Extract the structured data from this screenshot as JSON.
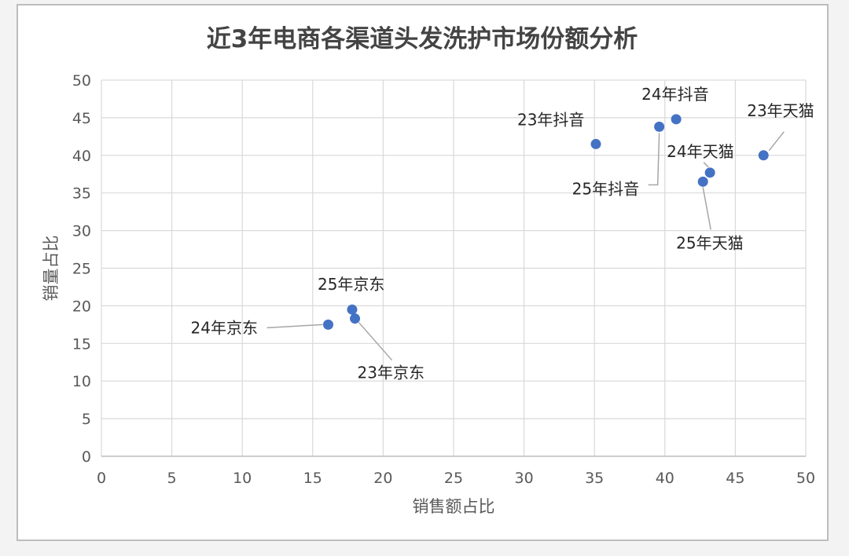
{
  "chart_data": {
    "type": "scatter",
    "title": "近3年电商各渠道头发洗护市场份额分析",
    "xlabel": "销售额占比",
    "ylabel": "销量占比",
    "xlim": [
      0,
      50
    ],
    "ylim": [
      0,
      50
    ],
    "xticks": [
      0,
      5,
      10,
      15,
      20,
      25,
      30,
      35,
      40,
      45,
      50
    ],
    "yticks": [
      0,
      5,
      10,
      15,
      20,
      25,
      30,
      35,
      40,
      45,
      50
    ],
    "grid": true,
    "marker_color": "#4472c4",
    "points": [
      {
        "label": "23年抖音",
        "x": 35.1,
        "y": 41.5
      },
      {
        "label": "24年抖音",
        "x": 40.8,
        "y": 44.8
      },
      {
        "label": "25年抖音",
        "x": 39.6,
        "y": 43.8
      },
      {
        "label": "23年天猫",
        "x": 47.0,
        "y": 40.0
      },
      {
        "label": "24年天猫",
        "x": 43.2,
        "y": 37.7
      },
      {
        "label": "25年天猫",
        "x": 42.7,
        "y": 36.5
      },
      {
        "label": "25年京东",
        "x": 17.8,
        "y": 19.5
      },
      {
        "label": "24年京东",
        "x": 16.1,
        "y": 17.5
      },
      {
        "label": "23年京东",
        "x": 18.0,
        "y": 18.3
      }
    ]
  }
}
